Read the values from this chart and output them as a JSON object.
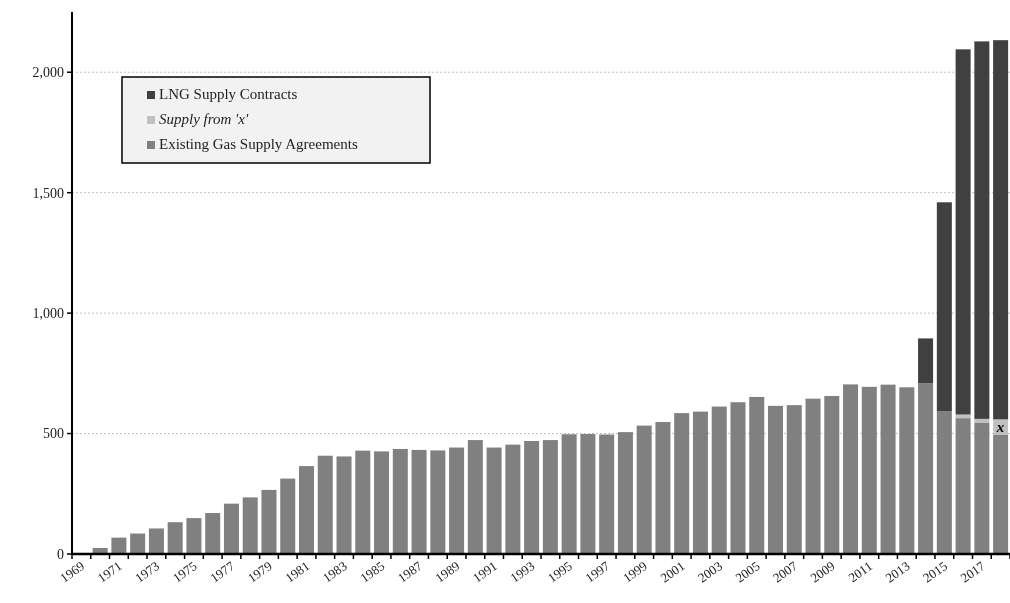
{
  "chart_data": {
    "type": "bar",
    "stacked": true,
    "categories": [
      "1969",
      null,
      "1971",
      null,
      "1973",
      null,
      "1975",
      null,
      "1977",
      null,
      "1979",
      null,
      "1981",
      null,
      "1983",
      null,
      "1985",
      null,
      "1987",
      null,
      "1989",
      null,
      "1991",
      null,
      "1993",
      null,
      "1995",
      null,
      "1997",
      null,
      "1999",
      null,
      "2001",
      null,
      "2003",
      null,
      "2005",
      null,
      "2007",
      null,
      "2009",
      null,
      "2011",
      null,
      "2013",
      null,
      "2015",
      null,
      "2017",
      null
    ],
    "series": [
      {
        "name": "Existing Gas Supply Agreements",
        "color": "#808080",
        "values": [
          0,
          25,
          68,
          85,
          106,
          132,
          149,
          170,
          209,
          235,
          266,
          313,
          365,
          408,
          405,
          429,
          426,
          436,
          432,
          430,
          442,
          473,
          442,
          454,
          469,
          473,
          497,
          498,
          496,
          506,
          533,
          548,
          585,
          591,
          612,
          630,
          652,
          615,
          618,
          645,
          656,
          704,
          694,
          703,
          692,
          709,
          592,
          564,
          544,
          494
        ]
      },
      {
        "name": "Supply from 'x'",
        "color": "#c0c0c0",
        "values": [
          0,
          0,
          0,
          0,
          0,
          0,
          0,
          0,
          0,
          0,
          0,
          0,
          0,
          0,
          0,
          0,
          0,
          0,
          0,
          0,
          0,
          0,
          0,
          0,
          0,
          0,
          0,
          0,
          0,
          0,
          0,
          0,
          0,
          0,
          0,
          0,
          0,
          0,
          0,
          0,
          0,
          0,
          0,
          0,
          0,
          0,
          0,
          15,
          17,
          65
        ]
      },
      {
        "name": "LNG Supply Contracts",
        "color": "#404040",
        "values": [
          0,
          0,
          0,
          0,
          0,
          0,
          0,
          0,
          0,
          0,
          0,
          0,
          0,
          0,
          0,
          0,
          0,
          0,
          0,
          0,
          0,
          0,
          0,
          0,
          0,
          0,
          0,
          0,
          0,
          0,
          0,
          0,
          0,
          0,
          0,
          0,
          0,
          0,
          0,
          0,
          0,
          0,
          0,
          0,
          0,
          186,
          868,
          1516,
          1567,
          1574
        ]
      }
    ],
    "ylim": [
      0,
      2250
    ],
    "yticks": [
      0,
      500,
      {
        "value": 1000,
        "label": "1,000"
      },
      {
        "value": 1500,
        "label": "1,500"
      },
      {
        "value": 2000,
        "label": "2,000"
      }
    ],
    "grid": "y",
    "legend": "top left",
    "annotations": [
      "x"
    ]
  }
}
